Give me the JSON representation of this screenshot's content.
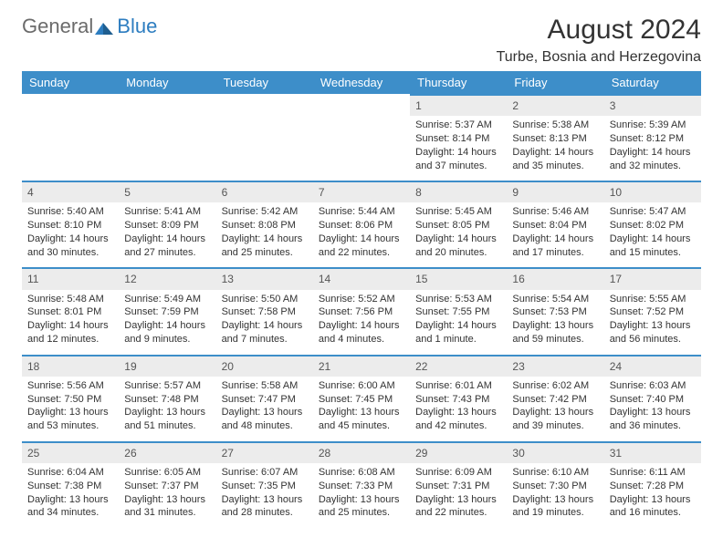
{
  "brand": {
    "general": "General",
    "blue": "Blue"
  },
  "title": "August 2024",
  "location": "Turbe, Bosnia and Herzegovina",
  "colors": {
    "header_bg": "#3d8ec9",
    "header_text": "#ffffff",
    "daynum_bg": "#ececec",
    "daynum_text": "#555555",
    "row_divider": "#3d8ec9",
    "body_text": "#333333",
    "background": "#ffffff"
  },
  "font": {
    "family": "Arial",
    "header_pt": 13,
    "body_pt": 11,
    "title_pt": 30,
    "location_pt": 16,
    "logo_pt": 22
  },
  "weekdays": [
    "Sunday",
    "Monday",
    "Tuesday",
    "Wednesday",
    "Thursday",
    "Friday",
    "Saturday"
  ],
  "weeks": [
    [
      null,
      null,
      null,
      null,
      {
        "n": "1",
        "sunrise": "5:37 AM",
        "sunset": "8:14 PM",
        "dl1": "Daylight: 14 hours",
        "dl2": "and 37 minutes."
      },
      {
        "n": "2",
        "sunrise": "5:38 AM",
        "sunset": "8:13 PM",
        "dl1": "Daylight: 14 hours",
        "dl2": "and 35 minutes."
      },
      {
        "n": "3",
        "sunrise": "5:39 AM",
        "sunset": "8:12 PM",
        "dl1": "Daylight: 14 hours",
        "dl2": "and 32 minutes."
      }
    ],
    [
      {
        "n": "4",
        "sunrise": "5:40 AM",
        "sunset": "8:10 PM",
        "dl1": "Daylight: 14 hours",
        "dl2": "and 30 minutes."
      },
      {
        "n": "5",
        "sunrise": "5:41 AM",
        "sunset": "8:09 PM",
        "dl1": "Daylight: 14 hours",
        "dl2": "and 27 minutes."
      },
      {
        "n": "6",
        "sunrise": "5:42 AM",
        "sunset": "8:08 PM",
        "dl1": "Daylight: 14 hours",
        "dl2": "and 25 minutes."
      },
      {
        "n": "7",
        "sunrise": "5:44 AM",
        "sunset": "8:06 PM",
        "dl1": "Daylight: 14 hours",
        "dl2": "and 22 minutes."
      },
      {
        "n": "8",
        "sunrise": "5:45 AM",
        "sunset": "8:05 PM",
        "dl1": "Daylight: 14 hours",
        "dl2": "and 20 minutes."
      },
      {
        "n": "9",
        "sunrise": "5:46 AM",
        "sunset": "8:04 PM",
        "dl1": "Daylight: 14 hours",
        "dl2": "and 17 minutes."
      },
      {
        "n": "10",
        "sunrise": "5:47 AM",
        "sunset": "8:02 PM",
        "dl1": "Daylight: 14 hours",
        "dl2": "and 15 minutes."
      }
    ],
    [
      {
        "n": "11",
        "sunrise": "5:48 AM",
        "sunset": "8:01 PM",
        "dl1": "Daylight: 14 hours",
        "dl2": "and 12 minutes."
      },
      {
        "n": "12",
        "sunrise": "5:49 AM",
        "sunset": "7:59 PM",
        "dl1": "Daylight: 14 hours",
        "dl2": "and 9 minutes."
      },
      {
        "n": "13",
        "sunrise": "5:50 AM",
        "sunset": "7:58 PM",
        "dl1": "Daylight: 14 hours",
        "dl2": "and 7 minutes."
      },
      {
        "n": "14",
        "sunrise": "5:52 AM",
        "sunset": "7:56 PM",
        "dl1": "Daylight: 14 hours",
        "dl2": "and 4 minutes."
      },
      {
        "n": "15",
        "sunrise": "5:53 AM",
        "sunset": "7:55 PM",
        "dl1": "Daylight: 14 hours",
        "dl2": "and 1 minute."
      },
      {
        "n": "16",
        "sunrise": "5:54 AM",
        "sunset": "7:53 PM",
        "dl1": "Daylight: 13 hours",
        "dl2": "and 59 minutes."
      },
      {
        "n": "17",
        "sunrise": "5:55 AM",
        "sunset": "7:52 PM",
        "dl1": "Daylight: 13 hours",
        "dl2": "and 56 minutes."
      }
    ],
    [
      {
        "n": "18",
        "sunrise": "5:56 AM",
        "sunset": "7:50 PM",
        "dl1": "Daylight: 13 hours",
        "dl2": "and 53 minutes."
      },
      {
        "n": "19",
        "sunrise": "5:57 AM",
        "sunset": "7:48 PM",
        "dl1": "Daylight: 13 hours",
        "dl2": "and 51 minutes."
      },
      {
        "n": "20",
        "sunrise": "5:58 AM",
        "sunset": "7:47 PM",
        "dl1": "Daylight: 13 hours",
        "dl2": "and 48 minutes."
      },
      {
        "n": "21",
        "sunrise": "6:00 AM",
        "sunset": "7:45 PM",
        "dl1": "Daylight: 13 hours",
        "dl2": "and 45 minutes."
      },
      {
        "n": "22",
        "sunrise": "6:01 AM",
        "sunset": "7:43 PM",
        "dl1": "Daylight: 13 hours",
        "dl2": "and 42 minutes."
      },
      {
        "n": "23",
        "sunrise": "6:02 AM",
        "sunset": "7:42 PM",
        "dl1": "Daylight: 13 hours",
        "dl2": "and 39 minutes."
      },
      {
        "n": "24",
        "sunrise": "6:03 AM",
        "sunset": "7:40 PM",
        "dl1": "Daylight: 13 hours",
        "dl2": "and 36 minutes."
      }
    ],
    [
      {
        "n": "25",
        "sunrise": "6:04 AM",
        "sunset": "7:38 PM",
        "dl1": "Daylight: 13 hours",
        "dl2": "and 34 minutes."
      },
      {
        "n": "26",
        "sunrise": "6:05 AM",
        "sunset": "7:37 PM",
        "dl1": "Daylight: 13 hours",
        "dl2": "and 31 minutes."
      },
      {
        "n": "27",
        "sunrise": "6:07 AM",
        "sunset": "7:35 PM",
        "dl1": "Daylight: 13 hours",
        "dl2": "and 28 minutes."
      },
      {
        "n": "28",
        "sunrise": "6:08 AM",
        "sunset": "7:33 PM",
        "dl1": "Daylight: 13 hours",
        "dl2": "and 25 minutes."
      },
      {
        "n": "29",
        "sunrise": "6:09 AM",
        "sunset": "7:31 PM",
        "dl1": "Daylight: 13 hours",
        "dl2": "and 22 minutes."
      },
      {
        "n": "30",
        "sunrise": "6:10 AM",
        "sunset": "7:30 PM",
        "dl1": "Daylight: 13 hours",
        "dl2": "and 19 minutes."
      },
      {
        "n": "31",
        "sunrise": "6:11 AM",
        "sunset": "7:28 PM",
        "dl1": "Daylight: 13 hours",
        "dl2": "and 16 minutes."
      }
    ]
  ],
  "labels": {
    "sunrise": "Sunrise: ",
    "sunset": "Sunset: "
  }
}
